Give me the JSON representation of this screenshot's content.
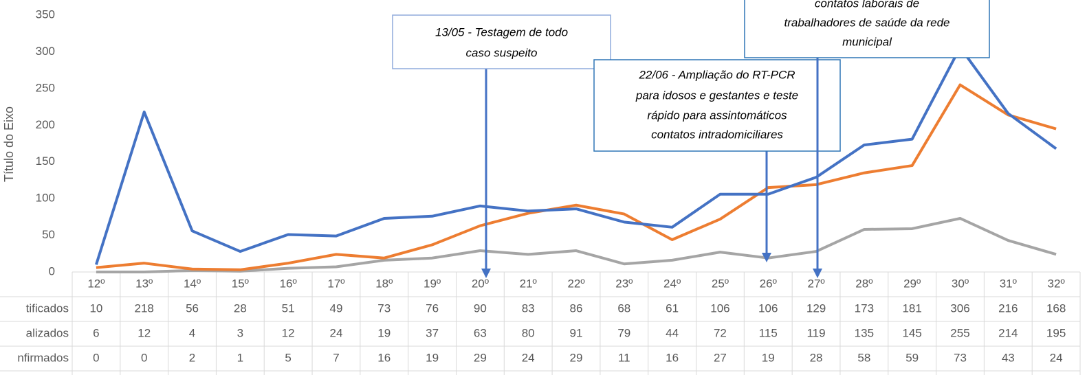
{
  "chart_data": {
    "type": "line",
    "y_label": "Título do Eixo",
    "categories": [
      "12º",
      "13º",
      "14º",
      "15º",
      "16º",
      "17º",
      "18º",
      "19º",
      "20º",
      "21º",
      "22º",
      "23º",
      "24º",
      "25º",
      "26º",
      "27º",
      "28º",
      "29º",
      "30º",
      "31º",
      "32º"
    ],
    "series": [
      {
        "name": "tificados",
        "color": "#4472c4",
        "values": [
          10,
          218,
          56,
          28,
          51,
          49,
          73,
          76,
          90,
          83,
          86,
          68,
          61,
          106,
          106,
          129,
          173,
          181,
          306,
          216,
          168
        ]
      },
      {
        "name": "alizados",
        "color": "#ed7d31",
        "values": [
          6,
          12,
          4,
          3,
          12,
          24,
          19,
          37,
          63,
          80,
          91,
          79,
          44,
          72,
          115,
          119,
          135,
          145,
          255,
          214,
          195
        ]
      },
      {
        "name": "nfirmados",
        "color": "#a5a5a5",
        "values": [
          0,
          0,
          2,
          1,
          5,
          7,
          16,
          19,
          29,
          24,
          29,
          11,
          16,
          27,
          19,
          28,
          58,
          59,
          73,
          43,
          24
        ]
      }
    ],
    "ylim": [
      0,
      350
    ],
    "yticks": [
      0,
      50,
      100,
      150,
      200,
      250,
      300,
      350
    ],
    "grid": false,
    "annotations": [
      {
        "lines": [
          "13/05 - Testagem de todo",
          "caso suspeito"
        ]
      },
      {
        "lines": [
          "22/06 - Ampliação do RT-PCR",
          "para idosos e gestantes e teste",
          "rápido para assintomáticos",
          "contatos intradomiciliares"
        ]
      },
      {
        "lines": [
          "contatos laborais de",
          "trabalhadores de saúde da rede",
          "municipal"
        ]
      }
    ]
  }
}
